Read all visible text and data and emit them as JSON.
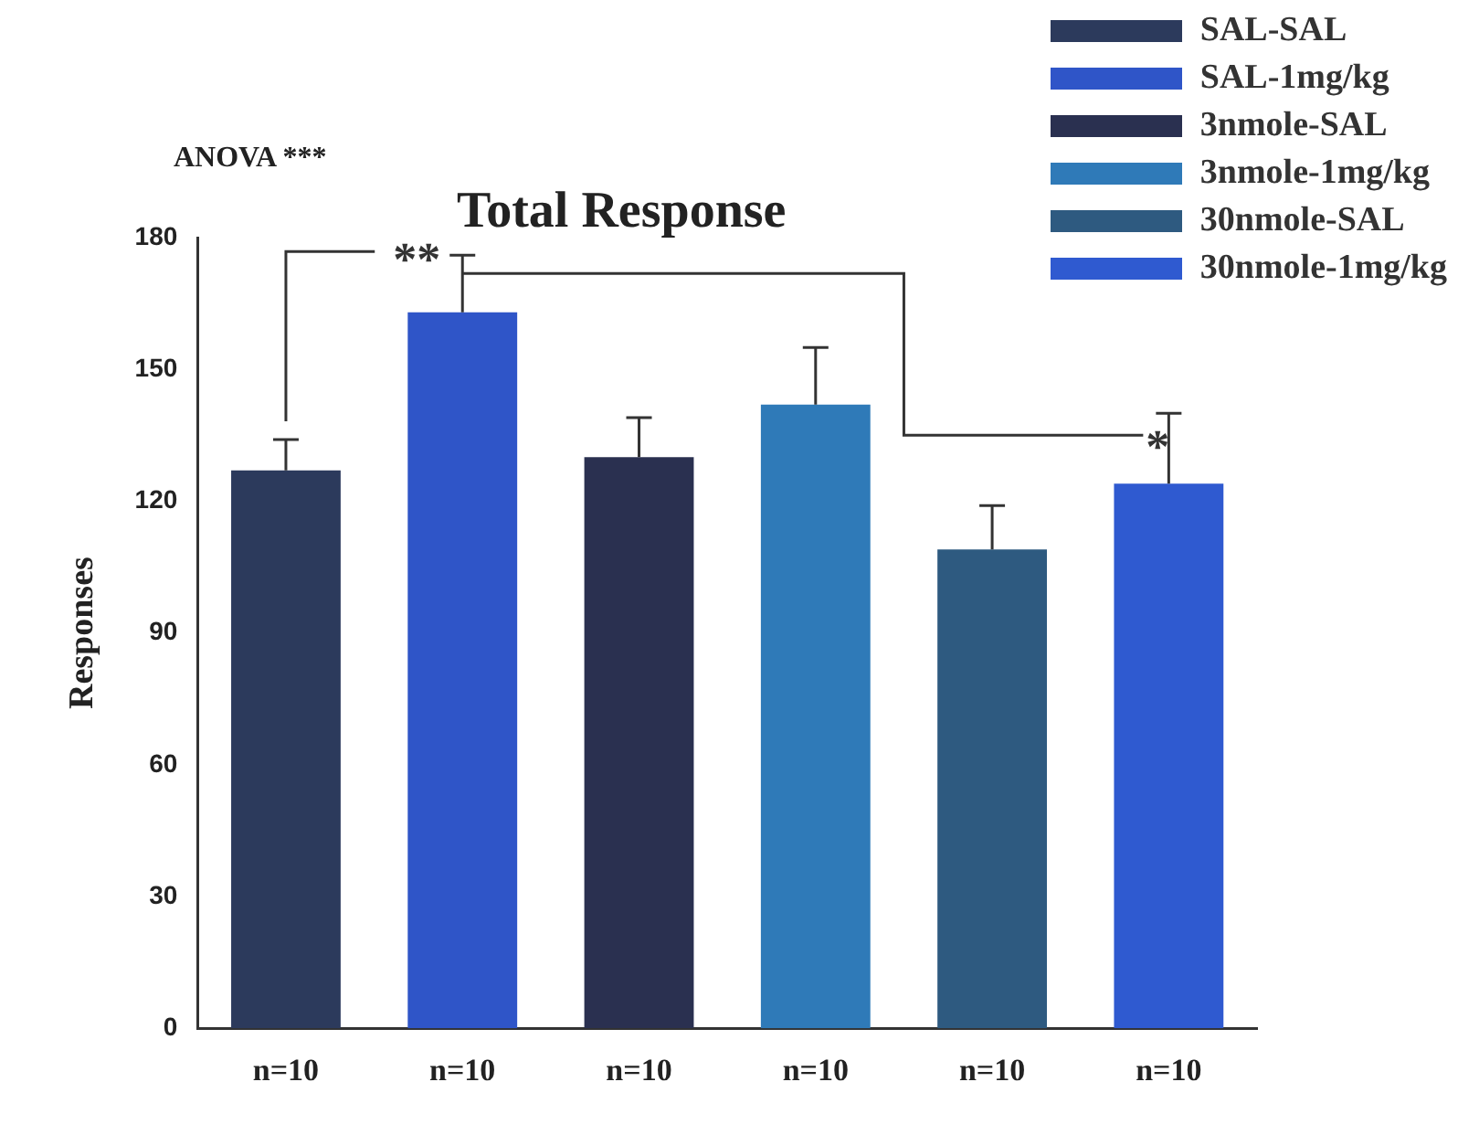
{
  "chart_data": {
    "type": "bar",
    "title": "Total Response",
    "ylabel": "Responses",
    "categories": [
      "n=10",
      "n=10",
      "n=10",
      "n=10",
      "n=10",
      "n=10"
    ],
    "series": [
      {
        "name": "SAL-SAL",
        "color": "#2c3a5c",
        "values": [
          127,
          null,
          null,
          null,
          null,
          null
        ],
        "errors": [
          7,
          null,
          null,
          null,
          null,
          null
        ]
      },
      {
        "name": "SAL-1mg/kg",
        "color": "#2f55c8",
        "values": [
          null,
          163,
          null,
          null,
          null,
          null
        ],
        "errors": [
          null,
          13,
          null,
          null,
          null,
          null
        ]
      },
      {
        "name": "3nmole-SAL",
        "color": "#2a3050",
        "values": [
          null,
          null,
          130,
          null,
          null,
          null
        ],
        "errors": [
          null,
          null,
          9,
          null,
          null,
          null
        ]
      },
      {
        "name": "3nmole-1mg/kg",
        "color": "#2f7ab8",
        "values": [
          null,
          null,
          null,
          142,
          null,
          null
        ],
        "errors": [
          null,
          null,
          null,
          13,
          null,
          null
        ]
      },
      {
        "name": "30nmole-SAL",
        "color": "#2e5a80",
        "values": [
          null,
          null,
          null,
          null,
          109,
          null
        ],
        "errors": [
          null,
          null,
          null,
          null,
          10,
          null
        ]
      },
      {
        "name": "30nmole-1mg/kg",
        "color": "#2f5ad0",
        "values": [
          null,
          null,
          null,
          null,
          null,
          124
        ],
        "errors": [
          null,
          null,
          null,
          null,
          null,
          16
        ]
      }
    ],
    "ylim": [
      0,
      180
    ],
    "yticks": [
      0,
      30,
      60,
      90,
      120,
      150,
      180
    ],
    "grid": false,
    "legend": "top right",
    "annotations": [
      "ANOVA ***",
      "**",
      "*"
    ]
  }
}
